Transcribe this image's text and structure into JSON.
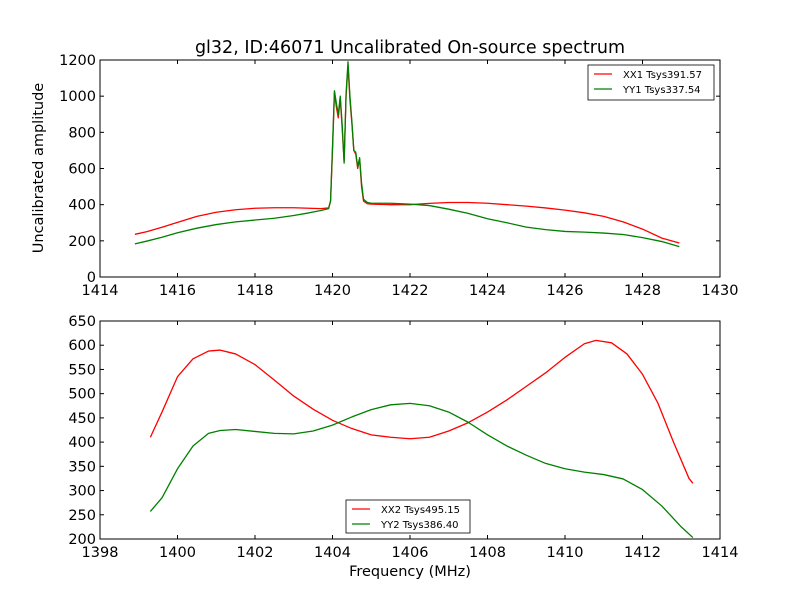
{
  "chart_data": [
    {
      "type": "line",
      "title": "gl32, ID:46071 Uncalibrated On-source spectrum",
      "xlabel": "",
      "ylabel": "Uncalibrated amplitude",
      "xlim": [
        1414,
        1430
      ],
      "ylim": [
        0,
        1200
      ],
      "xticks": [
        1414,
        1416,
        1418,
        1420,
        1422,
        1424,
        1426,
        1428,
        1430
      ],
      "yticks": [
        0,
        200,
        400,
        600,
        800,
        1000,
        1200
      ],
      "grid": false,
      "legend_position": "top-right",
      "series": [
        {
          "name": "XX1 Tsys391.57",
          "color": "#ff0000",
          "points": [
            [
              1414.9,
              236
            ],
            [
              1415.2,
              250
            ],
            [
              1415.6,
              275
            ],
            [
              1416.0,
              302
            ],
            [
              1416.5,
              335
            ],
            [
              1417.0,
              358
            ],
            [
              1417.5,
              372
            ],
            [
              1418.0,
              380
            ],
            [
              1418.5,
              383
            ],
            [
              1419.0,
              383
            ],
            [
              1419.4,
              380
            ],
            [
              1419.7,
              378
            ],
            [
              1419.9,
              382
            ],
            [
              1419.95,
              420
            ],
            [
              1420.0,
              700
            ],
            [
              1420.05,
              1020
            ],
            [
              1420.1,
              940
            ],
            [
              1420.15,
              880
            ],
            [
              1420.2,
              990
            ],
            [
              1420.25,
              820
            ],
            [
              1420.3,
              640
            ],
            [
              1420.35,
              1000
            ],
            [
              1420.4,
              1170
            ],
            [
              1420.45,
              980
            ],
            [
              1420.5,
              850
            ],
            [
              1420.55,
              700
            ],
            [
              1420.6,
              680
            ],
            [
              1420.65,
              600
            ],
            [
              1420.7,
              650
            ],
            [
              1420.75,
              500
            ],
            [
              1420.8,
              420
            ],
            [
              1420.9,
              405
            ],
            [
              1421.0,
              403
            ],
            [
              1421.5,
              400
            ],
            [
              1422.0,
              400
            ],
            [
              1422.5,
              407
            ],
            [
              1423.0,
              412
            ],
            [
              1423.5,
              412
            ],
            [
              1424.0,
              408
            ],
            [
              1424.5,
              400
            ],
            [
              1425.0,
              392
            ],
            [
              1425.5,
              382
            ],
            [
              1426.0,
              370
            ],
            [
              1426.5,
              355
            ],
            [
              1427.0,
              335
            ],
            [
              1427.5,
              305
            ],
            [
              1428.0,
              265
            ],
            [
              1428.5,
              215
            ],
            [
              1428.95,
              188
            ]
          ]
        },
        {
          "name": "YY1 Tsys337.54",
          "color": "#008000",
          "points": [
            [
              1414.9,
              183
            ],
            [
              1415.2,
              198
            ],
            [
              1415.6,
              220
            ],
            [
              1416.0,
              245
            ],
            [
              1416.5,
              270
            ],
            [
              1417.0,
              290
            ],
            [
              1417.5,
              305
            ],
            [
              1418.0,
              315
            ],
            [
              1418.5,
              325
            ],
            [
              1419.0,
              340
            ],
            [
              1419.4,
              355
            ],
            [
              1419.7,
              368
            ],
            [
              1419.9,
              378
            ],
            [
              1419.95,
              420
            ],
            [
              1420.0,
              720
            ],
            [
              1420.05,
              1030
            ],
            [
              1420.1,
              960
            ],
            [
              1420.15,
              900
            ],
            [
              1420.2,
              1000
            ],
            [
              1420.25,
              840
            ],
            [
              1420.3,
              630
            ],
            [
              1420.35,
              1010
            ],
            [
              1420.4,
              1190
            ],
            [
              1420.45,
              1000
            ],
            [
              1420.5,
              860
            ],
            [
              1420.55,
              700
            ],
            [
              1420.6,
              690
            ],
            [
              1420.65,
              610
            ],
            [
              1420.7,
              660
            ],
            [
              1420.75,
              520
            ],
            [
              1420.8,
              430
            ],
            [
              1420.9,
              412
            ],
            [
              1421.0,
              408
            ],
            [
              1421.5,
              408
            ],
            [
              1422.0,
              403
            ],
            [
              1422.5,
              395
            ],
            [
              1423.0,
              375
            ],
            [
              1423.5,
              352
            ],
            [
              1424.0,
              322
            ],
            [
              1424.5,
              300
            ],
            [
              1425.0,
              276
            ],
            [
              1425.5,
              262
            ],
            [
              1426.0,
              252
            ],
            [
              1426.5,
              248
            ],
            [
              1427.0,
              243
            ],
            [
              1427.5,
              235
            ],
            [
              1428.0,
              218
            ],
            [
              1428.5,
              196
            ],
            [
              1428.95,
              168
            ]
          ]
        }
      ]
    },
    {
      "type": "line",
      "title": "",
      "xlabel": "Frequency (MHz)",
      "ylabel": "",
      "xlim": [
        1398,
        1414
      ],
      "ylim": [
        200,
        650
      ],
      "xticks": [
        1398,
        1400,
        1402,
        1404,
        1406,
        1408,
        1410,
        1412,
        1414
      ],
      "yticks": [
        200,
        250,
        300,
        350,
        400,
        450,
        500,
        550,
        600,
        650
      ],
      "grid": false,
      "legend_position": "bottom-center",
      "series": [
        {
          "name": "XX2 Tsys495.15",
          "color": "#ff0000",
          "points": [
            [
              1399.3,
              410
            ],
            [
              1399.6,
              462
            ],
            [
              1400.0,
              535
            ],
            [
              1400.4,
              572
            ],
            [
              1400.8,
              588
            ],
            [
              1401.1,
              590
            ],
            [
              1401.5,
              582
            ],
            [
              1402.0,
              560
            ],
            [
              1402.5,
              528
            ],
            [
              1403.0,
              495
            ],
            [
              1403.5,
              468
            ],
            [
              1404.0,
              445
            ],
            [
              1404.5,
              428
            ],
            [
              1405.0,
              415
            ],
            [
              1405.5,
              410
            ],
            [
              1406.0,
              407
            ],
            [
              1406.5,
              410
            ],
            [
              1407.0,
              423
            ],
            [
              1407.5,
              440
            ],
            [
              1408.0,
              462
            ],
            [
              1408.5,
              487
            ],
            [
              1409.0,
              515
            ],
            [
              1409.5,
              543
            ],
            [
              1410.0,
              575
            ],
            [
              1410.5,
              603
            ],
            [
              1410.8,
              610
            ],
            [
              1411.2,
              605
            ],
            [
              1411.6,
              582
            ],
            [
              1412.0,
              540
            ],
            [
              1412.4,
              480
            ],
            [
              1412.8,
              400
            ],
            [
              1413.2,
              325
            ],
            [
              1413.3,
              315
            ]
          ]
        },
        {
          "name": "YY2 Tsys386.40",
          "color": "#008000",
          "points": [
            [
              1399.3,
              257
            ],
            [
              1399.6,
              285
            ],
            [
              1400.0,
              345
            ],
            [
              1400.4,
              392
            ],
            [
              1400.8,
              418
            ],
            [
              1401.1,
              424
            ],
            [
              1401.5,
              426
            ],
            [
              1402.0,
              422
            ],
            [
              1402.5,
              418
            ],
            [
              1403.0,
              417
            ],
            [
              1403.5,
              423
            ],
            [
              1404.0,
              435
            ],
            [
              1404.5,
              452
            ],
            [
              1405.0,
              467
            ],
            [
              1405.5,
              477
            ],
            [
              1406.0,
              480
            ],
            [
              1406.5,
              475
            ],
            [
              1407.0,
              462
            ],
            [
              1407.5,
              441
            ],
            [
              1408.0,
              415
            ],
            [
              1408.5,
              392
            ],
            [
              1409.0,
              373
            ],
            [
              1409.5,
              356
            ],
            [
              1410.0,
              345
            ],
            [
              1410.5,
              338
            ],
            [
              1411.0,
              333
            ],
            [
              1411.5,
              324
            ],
            [
              1412.0,
              302
            ],
            [
              1412.5,
              268
            ],
            [
              1413.0,
              225
            ],
            [
              1413.3,
              203
            ]
          ]
        }
      ]
    }
  ]
}
